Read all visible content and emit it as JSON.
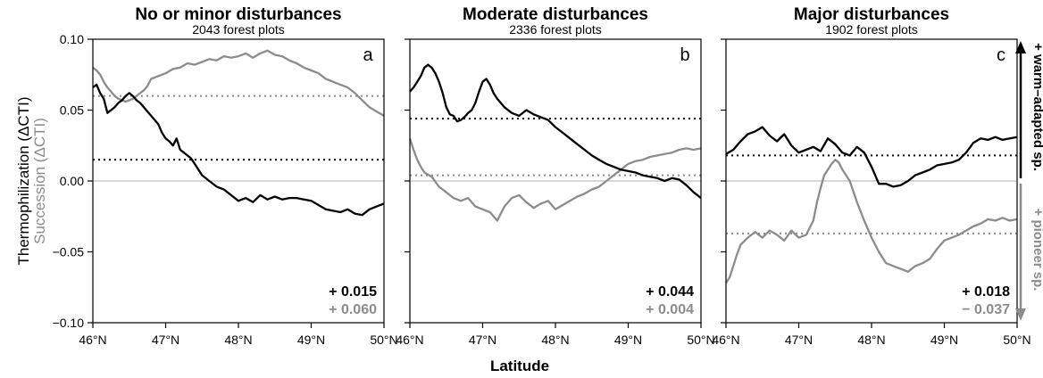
{
  "chart_data": {
    "type": "line",
    "xlabel": "Latitude",
    "ylabel_primary": "Thermophilization (ΔCTI)",
    "ylabel_secondary": "Succession (ΔCTI)",
    "xlim": [
      46,
      50
    ],
    "ylim": [
      -0.1,
      0.1
    ],
    "x_ticks": [
      46,
      47,
      48,
      49,
      50
    ],
    "x_tick_labels": [
      "46°N",
      "47°N",
      "48°N",
      "49°N",
      "50°N"
    ],
    "y_ticks": [
      -0.1,
      -0.05,
      0.0,
      0.05,
      0.1
    ],
    "y_tick_labels": [
      "−0.10",
      "−0.05",
      "0.00",
      "0.05",
      "0.10"
    ],
    "side_label_top": "+ warm–adapted sp.",
    "side_label_bottom": "+ pioneer sp.",
    "colors": {
      "thermophilization": "#000000",
      "succession": "#8c8c8c",
      "zero_line": "#bfbfbf"
    },
    "panels": [
      {
        "letter": "a",
        "title": "No or minor disturbances",
        "subtitle": "2043 forest plots",
        "series": [
          {
            "name": "Thermophilization",
            "mean": 0.015,
            "mean_label": "+ 0.015",
            "x": [
              46.0,
              46.05,
              46.1,
              46.15,
              46.2,
              46.25,
              46.3,
              46.35,
              46.4,
              46.45,
              46.5,
              46.55,
              46.6,
              46.65,
              46.7,
              46.75,
              46.8,
              46.85,
              46.9,
              46.95,
              47.0,
              47.05,
              47.1,
              47.15,
              47.2,
              47.25,
              47.3,
              47.35,
              47.4,
              47.45,
              47.5,
              47.6,
              47.7,
              47.8,
              47.9,
              48.0,
              48.1,
              48.2,
              48.3,
              48.4,
              48.5,
              48.6,
              48.7,
              48.8,
              48.9,
              49.0,
              49.1,
              49.2,
              49.3,
              49.4,
              49.5,
              49.6,
              49.7,
              49.8,
              49.9,
              50.0
            ],
            "y": [
              0.066,
              0.068,
              0.062,
              0.058,
              0.048,
              0.05,
              0.052,
              0.055,
              0.057,
              0.06,
              0.062,
              0.06,
              0.057,
              0.055,
              0.052,
              0.049,
              0.046,
              0.043,
              0.04,
              0.034,
              0.03,
              0.028,
              0.025,
              0.03,
              0.022,
              0.02,
              0.018,
              0.016,
              0.012,
              0.008,
              0.004,
              0.0,
              -0.004,
              -0.006,
              -0.01,
              -0.014,
              -0.012,
              -0.015,
              -0.01,
              -0.013,
              -0.011,
              -0.013,
              -0.012,
              -0.012,
              -0.013,
              -0.014,
              -0.017,
              -0.02,
              -0.021,
              -0.022,
              -0.02,
              -0.023,
              -0.024,
              -0.02,
              -0.018,
              -0.016
            ]
          },
          {
            "name": "Succession",
            "mean": 0.06,
            "mean_label": "+ 0.060",
            "x": [
              46.0,
              46.05,
              46.1,
              46.15,
              46.2,
              46.25,
              46.3,
              46.35,
              46.4,
              46.45,
              46.5,
              46.55,
              46.6,
              46.65,
              46.7,
              46.75,
              46.8,
              46.9,
              47.0,
              47.1,
              47.2,
              47.3,
              47.4,
              47.5,
              47.6,
              47.7,
              47.8,
              47.9,
              48.0,
              48.1,
              48.2,
              48.3,
              48.4,
              48.5,
              48.6,
              48.7,
              48.8,
              48.9,
              49.0,
              49.1,
              49.2,
              49.3,
              49.4,
              49.5,
              49.6,
              49.7,
              49.8,
              49.9,
              50.0
            ],
            "y": [
              0.08,
              0.078,
              0.075,
              0.07,
              0.066,
              0.063,
              0.06,
              0.058,
              0.057,
              0.056,
              0.057,
              0.058,
              0.06,
              0.062,
              0.064,
              0.067,
              0.072,
              0.074,
              0.076,
              0.079,
              0.08,
              0.083,
              0.082,
              0.084,
              0.086,
              0.085,
              0.088,
              0.087,
              0.088,
              0.09,
              0.087,
              0.09,
              0.092,
              0.089,
              0.088,
              0.085,
              0.083,
              0.08,
              0.078,
              0.076,
              0.072,
              0.07,
              0.068,
              0.066,
              0.062,
              0.057,
              0.052,
              0.049,
              0.046
            ]
          }
        ]
      },
      {
        "letter": "b",
        "title": "Moderate disturbances",
        "subtitle": "2336 forest plots",
        "series": [
          {
            "name": "Thermophilization",
            "mean": 0.044,
            "mean_label": "+ 0.044",
            "x": [
              46.0,
              46.05,
              46.1,
              46.15,
              46.2,
              46.25,
              46.3,
              46.35,
              46.4,
              46.45,
              46.5,
              46.55,
              46.6,
              46.65,
              46.7,
              46.75,
              46.8,
              46.85,
              46.9,
              46.95,
              47.0,
              47.05,
              47.1,
              47.15,
              47.2,
              47.3,
              47.4,
              47.5,
              47.6,
              47.7,
              47.8,
              47.9,
              48.0,
              48.1,
              48.2,
              48.3,
              48.4,
              48.5,
              48.6,
              48.7,
              48.8,
              48.9,
              49.0,
              49.1,
              49.2,
              49.3,
              49.4,
              49.5,
              49.6,
              49.7,
              49.8,
              49.9,
              50.0
            ],
            "y": [
              0.063,
              0.066,
              0.07,
              0.074,
              0.08,
              0.082,
              0.08,
              0.076,
              0.07,
              0.062,
              0.052,
              0.047,
              0.046,
              0.042,
              0.043,
              0.045,
              0.048,
              0.05,
              0.055,
              0.063,
              0.07,
              0.072,
              0.068,
              0.062,
              0.058,
              0.052,
              0.048,
              0.046,
              0.05,
              0.047,
              0.045,
              0.043,
              0.038,
              0.034,
              0.03,
              0.026,
              0.022,
              0.018,
              0.015,
              0.012,
              0.01,
              0.008,
              0.007,
              0.006,
              0.004,
              0.003,
              0.002,
              0.0,
              0.002,
              0.001,
              -0.003,
              -0.008,
              -0.012
            ]
          },
          {
            "name": "Succession",
            "mean": 0.004,
            "mean_label": "+ 0.004",
            "x": [
              46.0,
              46.05,
              46.1,
              46.15,
              46.2,
              46.3,
              46.4,
              46.5,
              46.6,
              46.7,
              46.8,
              46.9,
              47.0,
              47.1,
              47.2,
              47.3,
              47.4,
              47.5,
              47.6,
              47.7,
              47.8,
              47.9,
              48.0,
              48.1,
              48.2,
              48.3,
              48.4,
              48.5,
              48.6,
              48.7,
              48.8,
              48.9,
              49.0,
              49.1,
              49.2,
              49.3,
              49.4,
              49.5,
              49.6,
              49.7,
              49.8,
              49.9,
              50.0
            ],
            "y": [
              0.03,
              0.022,
              0.015,
              0.01,
              0.006,
              0.003,
              -0.004,
              -0.008,
              -0.012,
              -0.014,
              -0.012,
              -0.018,
              -0.02,
              -0.022,
              -0.028,
              -0.018,
              -0.012,
              -0.01,
              -0.015,
              -0.019,
              -0.016,
              -0.014,
              -0.02,
              -0.017,
              -0.014,
              -0.011,
              -0.009,
              -0.006,
              -0.004,
              0.0,
              0.004,
              0.008,
              0.012,
              0.014,
              0.015,
              0.017,
              0.018,
              0.019,
              0.02,
              0.022,
              0.023,
              0.022,
              0.023
            ]
          }
        ]
      },
      {
        "letter": "c",
        "title": "Major disturbances",
        "subtitle": "1902 forest plots",
        "series": [
          {
            "name": "Thermophilization",
            "mean": 0.018,
            "mean_label": "+ 0.018",
            "x": [
              46.0,
              46.1,
              46.2,
              46.3,
              46.4,
              46.5,
              46.6,
              46.7,
              46.8,
              46.9,
              47.0,
              47.1,
              47.2,
              47.3,
              47.4,
              47.5,
              47.6,
              47.7,
              47.8,
              47.9,
              48.0,
              48.1,
              48.2,
              48.3,
              48.4,
              48.5,
              48.6,
              48.7,
              48.8,
              48.9,
              49.0,
              49.1,
              49.2,
              49.3,
              49.4,
              49.5,
              49.6,
              49.7,
              49.8,
              49.9,
              50.0
            ],
            "y": [
              0.019,
              0.022,
              0.028,
              0.033,
              0.035,
              0.038,
              0.032,
              0.028,
              0.033,
              0.025,
              0.02,
              0.022,
              0.024,
              0.021,
              0.03,
              0.026,
              0.02,
              0.018,
              0.024,
              0.02,
              0.01,
              -0.002,
              -0.002,
              -0.004,
              -0.003,
              0.0,
              0.004,
              0.006,
              0.008,
              0.011,
              0.012,
              0.013,
              0.015,
              0.02,
              0.027,
              0.03,
              0.029,
              0.031,
              0.029,
              0.03,
              0.031
            ]
          },
          {
            "name": "Succession",
            "mean": -0.037,
            "mean_label": "− 0.037",
            "x": [
              46.0,
              46.05,
              46.1,
              46.15,
              46.2,
              46.3,
              46.4,
              46.5,
              46.6,
              46.7,
              46.8,
              46.9,
              47.0,
              47.1,
              47.2,
              47.25,
              47.3,
              47.35,
              47.4,
              47.45,
              47.5,
              47.55,
              47.6,
              47.7,
              47.8,
              47.9,
              48.0,
              48.1,
              48.2,
              48.3,
              48.4,
              48.5,
              48.6,
              48.7,
              48.8,
              48.9,
              49.0,
              49.1,
              49.2,
              49.3,
              49.4,
              49.5,
              49.6,
              49.7,
              49.8,
              49.9,
              50.0
            ],
            "y": [
              -0.072,
              -0.068,
              -0.06,
              -0.052,
              -0.045,
              -0.04,
              -0.036,
              -0.04,
              -0.035,
              -0.038,
              -0.042,
              -0.035,
              -0.04,
              -0.038,
              -0.028,
              -0.015,
              -0.005,
              0.004,
              0.008,
              0.012,
              0.015,
              0.013,
              0.008,
              0.0,
              -0.015,
              -0.028,
              -0.04,
              -0.05,
              -0.058,
              -0.06,
              -0.062,
              -0.064,
              -0.06,
              -0.058,
              -0.055,
              -0.048,
              -0.042,
              -0.04,
              -0.038,
              -0.035,
              -0.032,
              -0.03,
              -0.027,
              -0.028,
              -0.026,
              -0.028,
              -0.027
            ]
          }
        ]
      }
    ]
  }
}
